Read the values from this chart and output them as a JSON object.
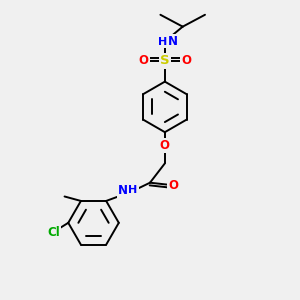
{
  "bg_color": "#f0f0f0",
  "atom_colors": {
    "N": "#0000ff",
    "O": "#ff0000",
    "S": "#cccc00",
    "Cl": "#00aa00",
    "C": "#000000"
  },
  "font_size": 8.5,
  "bond_width": 1.4,
  "figsize": [
    3.0,
    3.0
  ],
  "dpi": 100,
  "xlim": [
    0,
    10
  ],
  "ylim": [
    0,
    10
  ]
}
